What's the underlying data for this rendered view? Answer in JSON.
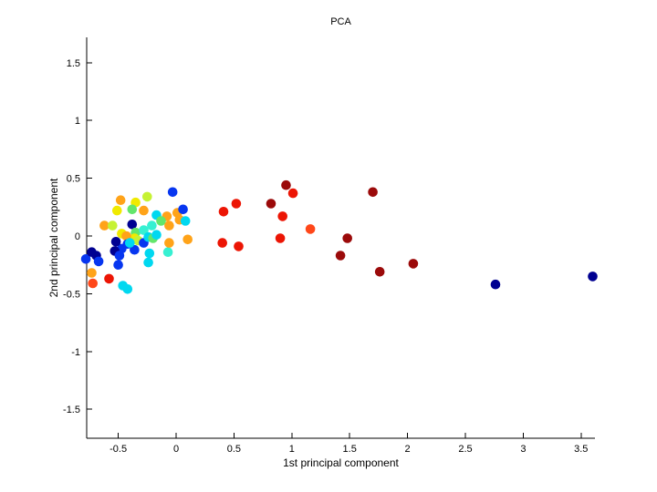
{
  "chart_data": {
    "type": "scatter",
    "title": "PCA",
    "xlabel": "1st principal component",
    "ylabel": "2nd principal component",
    "xlim": [
      -0.773,
      3.62
    ],
    "ylim": [
      -1.751,
      1.719
    ],
    "grid": false,
    "legend": "none",
    "background": "#FFFFFF",
    "axis_color": "#000000",
    "xticks": {
      "values": [
        -0.5,
        0,
        0.5,
        1,
        1.5,
        2,
        2.5,
        3,
        3.5
      ],
      "labels": [
        "-0.5",
        "0",
        "0.5",
        "1",
        "1.5",
        "2",
        "2.5",
        "3",
        "3.5"
      ]
    },
    "yticks": {
      "values": [
        -1.5,
        -1,
        -0.5,
        0,
        0.5,
        1,
        1.5
      ],
      "labels": [
        "-1.5",
        "-1",
        "-0.5",
        "0",
        "0.5",
        "1",
        "1.5"
      ]
    },
    "marker": {
      "shape": "circle",
      "radius_px": 5.3
    },
    "palette": {
      "navy": "#000091",
      "blue": "#0736F0",
      "cyan": "#00D8F0",
      "aqua": "#37F0D2",
      "green": "#63E66B",
      "yellowgreen": "#C6F233",
      "yellow": "#F0EA00",
      "orange": "#FFA319",
      "orangered": "#FF4719",
      "red": "#EC1504",
      "darkred": "#9B0A0A"
    },
    "points": [
      [
        -0.03,
        0.38,
        "blue"
      ],
      [
        -0.25,
        0.34,
        "yellowgreen"
      ],
      [
        -0.48,
        0.31,
        "orange"
      ],
      [
        -0.35,
        0.29,
        "yellow"
      ],
      [
        -0.51,
        0.22,
        "yellow"
      ],
      [
        -0.38,
        0.23,
        "green"
      ],
      [
        -0.28,
        0.22,
        "orange"
      ],
      [
        -0.17,
        0.18,
        "cyan"
      ],
      [
        -0.08,
        0.17,
        "orange"
      ],
      [
        0.01,
        0.2,
        "orange"
      ],
      [
        0.03,
        0.14,
        "orange"
      ],
      [
        0.06,
        0.23,
        "blue"
      ],
      [
        0.08,
        0.13,
        "cyan"
      ],
      [
        -0.13,
        0.13,
        "green"
      ],
      [
        -0.62,
        0.09,
        "orange"
      ],
      [
        -0.55,
        0.09,
        "yellowgreen"
      ],
      [
        -0.38,
        0.1,
        "navy"
      ],
      [
        -0.21,
        0.09,
        "aqua"
      ],
      [
        -0.06,
        0.09,
        "orange"
      ],
      [
        -0.47,
        0.02,
        "yellow"
      ],
      [
        -0.35,
        0.03,
        "green"
      ],
      [
        -0.28,
        0.05,
        "aqua"
      ],
      [
        -0.36,
        -0.02,
        "yellow"
      ],
      [
        -0.43,
        0.0,
        "orange"
      ],
      [
        -0.33,
        -0.04,
        "yellowgreen"
      ],
      [
        -0.28,
        -0.06,
        "blue"
      ],
      [
        -0.24,
        -0.01,
        "cyan"
      ],
      [
        -0.2,
        -0.02,
        "green"
      ],
      [
        -0.17,
        0.01,
        "cyan"
      ],
      [
        -0.42,
        -0.07,
        "blue"
      ],
      [
        -0.47,
        -0.11,
        "blue"
      ],
      [
        -0.36,
        -0.12,
        "blue"
      ],
      [
        -0.52,
        -0.05,
        "navy"
      ],
      [
        -0.4,
        -0.06,
        "cyan"
      ],
      [
        -0.23,
        -0.15,
        "cyan"
      ],
      [
        -0.24,
        -0.23,
        "cyan"
      ],
      [
        -0.07,
        -0.14,
        "aqua"
      ],
      [
        -0.06,
        -0.06,
        "orange"
      ],
      [
        0.1,
        -0.03,
        "orange"
      ],
      [
        -0.78,
        -0.2,
        "blue"
      ],
      [
        -0.73,
        -0.14,
        "navy"
      ],
      [
        -0.69,
        -0.17,
        "navy"
      ],
      [
        -0.67,
        -0.22,
        "blue"
      ],
      [
        -0.53,
        -0.13,
        "navy"
      ],
      [
        -0.49,
        -0.17,
        "blue"
      ],
      [
        -0.5,
        -0.25,
        "blue"
      ],
      [
        -0.73,
        -0.32,
        "orange"
      ],
      [
        -0.72,
        -0.41,
        "orangered"
      ],
      [
        -0.58,
        -0.37,
        "red"
      ],
      [
        -0.46,
        -0.43,
        "cyan"
      ],
      [
        -0.42,
        -0.46,
        "cyan"
      ],
      [
        0.41,
        0.21,
        "red"
      ],
      [
        0.52,
        0.28,
        "red"
      ],
      [
        0.82,
        0.28,
        "darkred"
      ],
      [
        0.95,
        0.44,
        "darkred"
      ],
      [
        1.01,
        0.37,
        "red"
      ],
      [
        0.92,
        0.17,
        "red"
      ],
      [
        1.16,
        0.06,
        "orangered"
      ],
      [
        0.9,
        -0.02,
        "red"
      ],
      [
        0.4,
        -0.06,
        "red"
      ],
      [
        0.54,
        -0.09,
        "red"
      ],
      [
        1.48,
        -0.02,
        "darkred"
      ],
      [
        1.42,
        -0.17,
        "darkred"
      ],
      [
        1.7,
        0.38,
        "darkred"
      ],
      [
        1.76,
        -0.31,
        "darkred"
      ],
      [
        2.05,
        -0.24,
        "darkred"
      ],
      [
        2.76,
        -0.42,
        "navy"
      ],
      [
        3.6,
        -0.35,
        "navy"
      ]
    ]
  }
}
